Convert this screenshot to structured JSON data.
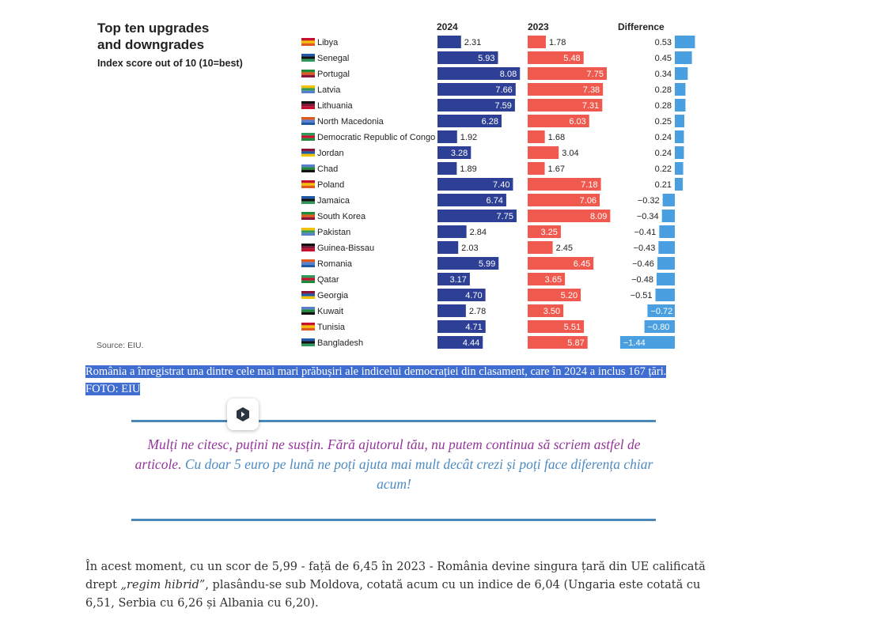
{
  "chart_data": {
    "type": "bar",
    "title_lines": [
      "Top ten upgrades",
      "and downgrades"
    ],
    "subtitle": "Index score out of 10 (10=best)",
    "source": "Source: EIU.",
    "columns": {
      "current": "2024",
      "previous": "2023",
      "difference": "Difference"
    },
    "series": [
      {
        "name": "2024",
        "color": "#2e3f96"
      },
      {
        "name": "2023",
        "color": "#f05a4e"
      },
      {
        "name": "Difference",
        "color": "#4a9fe0"
      }
    ],
    "rows": [
      {
        "country": "Libya",
        "v2024": "2.31",
        "v2023": "1.78",
        "diff": "0.53"
      },
      {
        "country": "Senegal",
        "v2024": "5.93",
        "v2023": "5.48",
        "diff": "0.45"
      },
      {
        "country": "Portugal",
        "v2024": "8.08",
        "v2023": "7.75",
        "diff": "0.34"
      },
      {
        "country": "Latvia",
        "v2024": "7.66",
        "v2023": "7.38",
        "diff": "0.28"
      },
      {
        "country": "Lithuania",
        "v2024": "7.59",
        "v2023": "7.31",
        "diff": "0.28"
      },
      {
        "country": "North Macedonia",
        "v2024": "6.28",
        "v2023": "6.03",
        "diff": "0.25"
      },
      {
        "country": "Democratic Republic of Congo",
        "v2024": "1.92",
        "v2023": "1.68",
        "diff": "0.24"
      },
      {
        "country": "Jordan",
        "v2024": "3.28",
        "v2023": "3.04",
        "diff": "0.24"
      },
      {
        "country": "Chad",
        "v2024": "1.89",
        "v2023": "1.67",
        "diff": "0.22"
      },
      {
        "country": "Poland",
        "v2024": "7.40",
        "v2023": "7.18",
        "diff": "0.21"
      },
      {
        "country": "Jamaica",
        "v2024": "6.74",
        "v2023": "7.06",
        "diff": "−0.32"
      },
      {
        "country": "South Korea",
        "v2024": "7.75",
        "v2023": "8.09",
        "diff": "−0.34"
      },
      {
        "country": "Pakistan",
        "v2024": "2.84",
        "v2023": "3.25",
        "diff": "−0.41"
      },
      {
        "country": "Guinea-Bissau",
        "v2024": "2.03",
        "v2023": "2.45",
        "diff": "−0.43"
      },
      {
        "country": "Romania",
        "v2024": "5.99",
        "v2023": "6.45",
        "diff": "−0.46"
      },
      {
        "country": "Qatar",
        "v2024": "3.17",
        "v2023": "3.65",
        "diff": "−0.48"
      },
      {
        "country": "Georgia",
        "v2024": "4.70",
        "v2023": "5.20",
        "diff": "−0.51"
      },
      {
        "country": "Kuwait",
        "v2024": "2.78",
        "v2023": "3.50",
        "diff": "−0.72"
      },
      {
        "country": "Tunisia",
        "v2024": "4.71",
        "v2023": "5.51",
        "diff": "−0.80"
      },
      {
        "country": "Bangladesh",
        "v2024": "4.44",
        "v2023": "5.87",
        "diff": "−1.44"
      }
    ]
  },
  "caption": "România a înregistrat una dintre cele mai mari prăbușiri ale indicelui democrației din clasament, care în 2024 a inclus 167 țări. FOTO: EIU",
  "support": {
    "icon": "shield-logo-icon",
    "purple_text": "Mulți ne citesc, puțini ne susțin. Fără ajutorul tău, nu putem continua să scriem astfel de articole.",
    "blue_text": "Cu doar 5 euro pe lună ne poți ajuta mai mult decât crezi și poți face diferența chiar acum!"
  },
  "article": {
    "before": "În acest moment, cu un scor de 5,99 - față de 6,45 în 2023 - România devine singura țară din UE calificată drept ",
    "emphasis": "„regim hibrid”",
    "after": ", plasându-se sub Moldova, cotată acum cu un indice de 6,04 (Ungaria este cotată cu 6,51, Serbia cu 6,26 și Albania cu 6,20)."
  }
}
